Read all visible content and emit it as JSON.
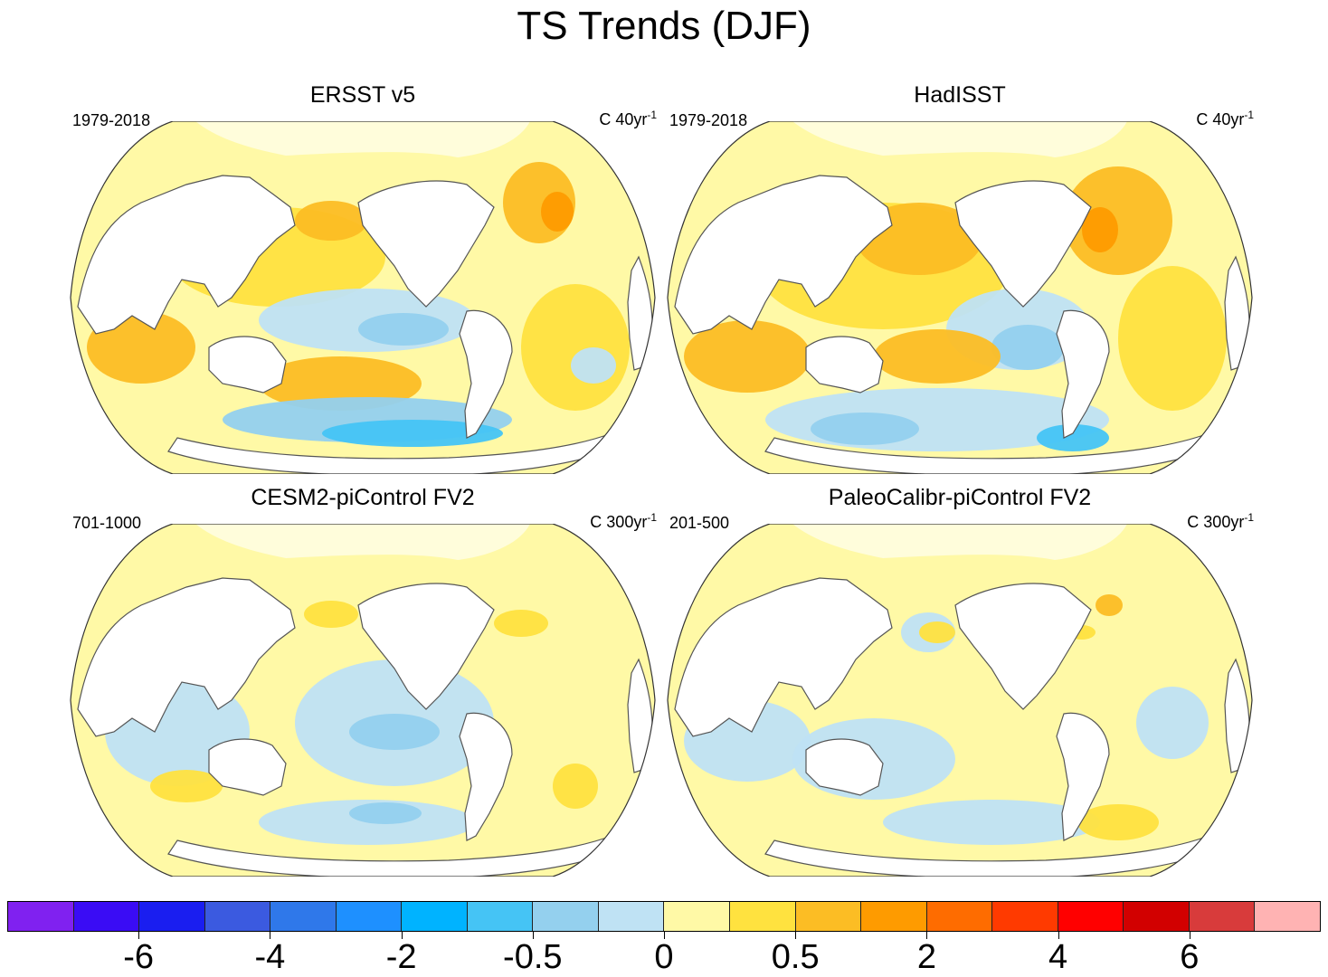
{
  "title": "TS Trends (DJF)",
  "panels": [
    {
      "title": "ERSST v5",
      "left_label": "1979-2018",
      "units_prefix": "C 40yr",
      "units_sup": "-1",
      "pattern": "obs"
    },
    {
      "title": "HadISST",
      "left_label": "1979-2018",
      "units_prefix": "C 40yr",
      "units_sup": "-1",
      "pattern": "obs"
    },
    {
      "title": "CESM2-piControl FV2",
      "left_label": "701-1000",
      "units_prefix": "C 300yr",
      "units_sup": "-1",
      "pattern": "model"
    },
    {
      "title": "PaleoCalibr-piControl FV2",
      "left_label": "201-500",
      "units_prefix": "C 300yr",
      "units_sup": "-1",
      "pattern": "model"
    }
  ],
  "colorbar": {
    "colors": [
      "#8021f0",
      "#3a0cf5",
      "#1a1ef0",
      "#3b5ae0",
      "#2f78ea",
      "#1e90ff",
      "#00b3ff",
      "#45c4f5",
      "#94d0ee",
      "#bfe2f4",
      "#fff9a6",
      "#ffe23f",
      "#fcbd24",
      "#fe9b00",
      "#fe6c00",
      "#ff3a00",
      "#ff0000",
      "#d20000",
      "#d83b3b",
      "#ffb3b3"
    ],
    "tick_labels": [
      {
        "label": "-6",
        "boundary": 2
      },
      {
        "label": "-4",
        "boundary": 4
      },
      {
        "label": "-2",
        "boundary": 6
      },
      {
        "label": "-0.5",
        "boundary": 8
      },
      {
        "label": "0",
        "boundary": 10
      },
      {
        "label": "0.5",
        "boundary": 12
      },
      {
        "label": "2",
        "boundary": 14
      },
      {
        "label": "4",
        "boundary": 16
      },
      {
        "label": "6",
        "boundary": 18
      }
    ]
  }
}
